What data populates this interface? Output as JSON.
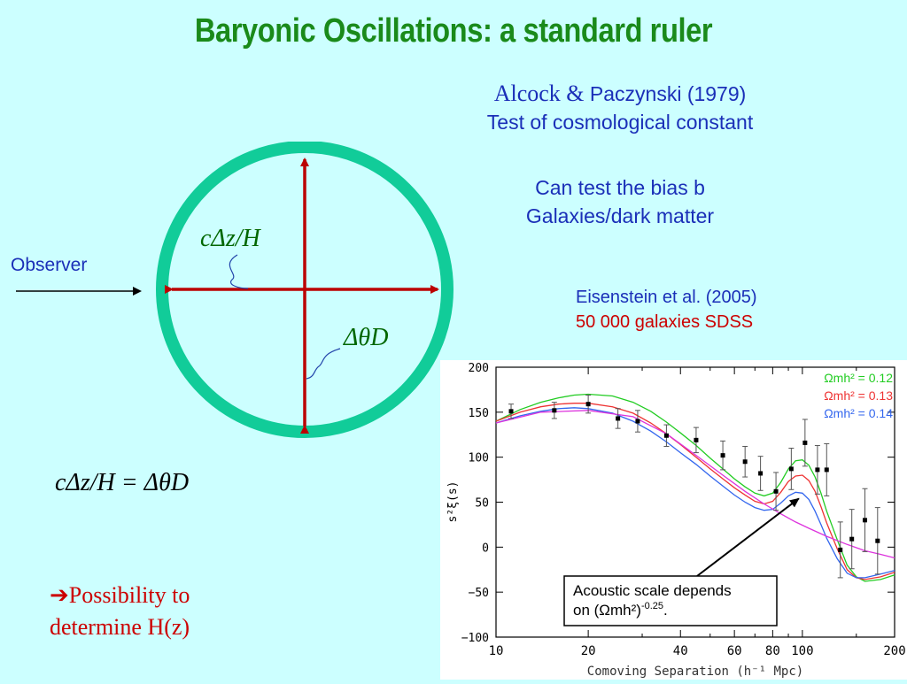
{
  "slide": {
    "title": "Baryonic Oscillations: a standard ruler",
    "ref1_author_a": "Alcock &",
    "ref1_author_b": "Paczynski (1979)",
    "ref1_line2": "Test of cosmological constant",
    "ref2_line1": "Can test the bias b",
    "ref2_line2": "Galaxies/dark matter",
    "ref3_line1": "Eisenstein et al. (2005)",
    "ref3_line2": "50 000 galaxies SDSS",
    "observer": "Observer",
    "label_radial": "cΔz/H",
    "label_transverse": "ΔθD",
    "formula": "cΔz/H = ΔθD",
    "conclusion_arrow": "➔",
    "conclusion_line1": "Possibility to",
    "conclusion_line2": "determine H(z)"
  },
  "colors": {
    "title": "#1a8a1a",
    "text_blue": "#1a2fb8",
    "text_red": "#cc0000",
    "circle": "#11cc99",
    "cross": "#bb0000",
    "background": "#ccffff"
  },
  "chart_data": {
    "type": "line",
    "xlabel": "Comoving Separation (h⁻¹ Mpc)",
    "ylabel": "s²ξ(s)",
    "xscale": "log",
    "xlim": [
      10,
      200
    ],
    "ylim": [
      -100,
      200
    ],
    "xticks": [
      {
        "value": 10,
        "label": "10"
      },
      {
        "value": 20,
        "label": "20"
      },
      {
        "value": 40,
        "label": "40"
      },
      {
        "value": 60,
        "label": "60"
      },
      {
        "value": 80,
        "label": "80"
      },
      {
        "value": 100,
        "label": "100"
      },
      {
        "value": 200,
        "label": "200"
      }
    ],
    "yticks": [
      -100,
      -50,
      0,
      50,
      100,
      150,
      200
    ],
    "ytick_labels": [
      "−100",
      "−50",
      "0",
      "50",
      "100",
      "150",
      "200"
    ],
    "legend_position": "top-right",
    "series": [
      {
        "name": "Ωmh² = 0.12",
        "color": "#22cc22",
        "x": [
          10,
          12,
          14,
          16,
          18,
          20,
          24,
          28,
          32,
          36,
          40,
          45,
          50,
          55,
          60,
          65,
          70,
          75,
          80,
          85,
          90,
          95,
          100,
          105,
          110,
          115,
          120,
          130,
          140,
          150,
          160,
          180,
          200
        ],
        "y": [
          140,
          153,
          161,
          166,
          169,
          170,
          168,
          161,
          151,
          139,
          127,
          113,
          99,
          87,
          76,
          67,
          60,
          57,
          60,
          72,
          87,
          96,
          97,
          91,
          78,
          60,
          40,
          8,
          -20,
          -33,
          -38,
          -36,
          -31
        ]
      },
      {
        "name": "Ωmh² = 0.13",
        "color": "#ee3333",
        "x": [
          10,
          12,
          14,
          16,
          18,
          20,
          24,
          28,
          32,
          36,
          40,
          45,
          50,
          55,
          60,
          65,
          70,
          75,
          80,
          85,
          90,
          95,
          100,
          105,
          110,
          115,
          120,
          130,
          140,
          150,
          160,
          180,
          200
        ],
        "y": [
          140,
          150,
          156,
          159,
          160,
          160,
          156,
          149,
          138,
          126,
          114,
          100,
          87,
          76,
          66,
          58,
          51,
          48,
          51,
          61,
          73,
          79,
          80,
          74,
          62,
          45,
          27,
          -2,
          -25,
          -34,
          -36,
          -33,
          -28
        ]
      },
      {
        "name": "Ωmh² = 0.14",
        "color": "#3366ee",
        "x": [
          10,
          12,
          14,
          16,
          18,
          20,
          24,
          28,
          32,
          36,
          40,
          45,
          50,
          55,
          60,
          65,
          70,
          75,
          80,
          85,
          90,
          95,
          100,
          105,
          110,
          115,
          120,
          130,
          140,
          150,
          160,
          180,
          200
        ],
        "y": [
          138,
          146,
          151,
          154,
          155,
          154,
          149,
          140,
          129,
          117,
          105,
          92,
          79,
          68,
          58,
          50,
          44,
          41,
          42,
          49,
          57,
          61,
          60,
          53,
          40,
          25,
          10,
          -13,
          -29,
          -34,
          -34,
          -30,
          -26
        ]
      },
      {
        "name": "",
        "color": "#dd33dd",
        "x": [
          10,
          14,
          20,
          28,
          36,
          45,
          55,
          65,
          75,
          85,
          95,
          105,
          120,
          140,
          160,
          180,
          200
        ],
        "y": [
          138,
          150,
          152,
          145,
          126,
          102,
          80,
          62,
          48,
          37,
          28,
          21,
          12,
          3,
          -4,
          -8,
          -12
        ]
      }
    ],
    "points": [
      {
        "x": 11.2,
        "y": 151,
        "err": 8
      },
      {
        "x": 15.5,
        "y": 152,
        "err": 9
      },
      {
        "x": 20,
        "y": 159,
        "err": 10
      },
      {
        "x": 25,
        "y": 143,
        "err": 11
      },
      {
        "x": 29,
        "y": 140,
        "err": 12
      },
      {
        "x": 36,
        "y": 124,
        "err": 12
      },
      {
        "x": 45,
        "y": 119,
        "err": 14
      },
      {
        "x": 55,
        "y": 102,
        "err": 16
      },
      {
        "x": 65,
        "y": 95,
        "err": 17
      },
      {
        "x": 73,
        "y": 82,
        "err": 19
      },
      {
        "x": 82,
        "y": 62,
        "err": 21
      },
      {
        "x": 92,
        "y": 87,
        "err": 23
      },
      {
        "x": 102,
        "y": 116,
        "err": 26
      },
      {
        "x": 112,
        "y": 86,
        "err": 27
      },
      {
        "x": 120,
        "y": 86,
        "err": 29
      },
      {
        "x": 133,
        "y": -3,
        "err": 31
      },
      {
        "x": 145,
        "y": 9,
        "err": 33
      },
      {
        "x": 160,
        "y": 30,
        "err": 35
      },
      {
        "x": 176,
        "y": 7,
        "err": 37
      }
    ],
    "annotation": {
      "text_line1": "Acoustic scale depends",
      "text_line2_prefix": "on (Ωmh²)",
      "text_line2_exp": "-0.25",
      "text_line2_suffix": ".",
      "arrow_to": {
        "x": 100,
        "y": 58
      }
    }
  }
}
